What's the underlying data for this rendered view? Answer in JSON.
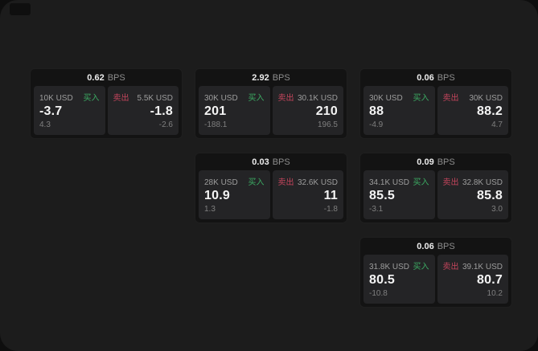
{
  "page": {
    "background_color": "#0e0e0e",
    "surface_color": "#1c1c1c",
    "card_color": "#131313",
    "tile_color": "#242426",
    "buy_color": "#3cab63",
    "sell_color": "#c4455c"
  },
  "labels": {
    "bps_unit": "BPS",
    "buy": "买入",
    "sell": "卖出"
  },
  "cards": [
    {
      "bps": "0.62",
      "buy": {
        "amount": "10K USD",
        "price": "-3.7",
        "delta": "4.3"
      },
      "sell": {
        "amount": "5.5K USD",
        "price": "-1.8",
        "delta": "-2.6"
      }
    },
    {
      "bps": "2.92",
      "buy": {
        "amount": "30K USD",
        "price": "201",
        "delta": "-188.1"
      },
      "sell": {
        "amount": "30.1K USD",
        "price": "210",
        "delta": "196.5"
      }
    },
    {
      "bps": "0.06",
      "buy": {
        "amount": "30K USD",
        "price": "88",
        "delta": "-4.9"
      },
      "sell": {
        "amount": "30K USD",
        "price": "88.2",
        "delta": "4.7"
      }
    },
    {
      "bps": "0.03",
      "buy": {
        "amount": "28K USD",
        "price": "10.9",
        "delta": "1.3"
      },
      "sell": {
        "amount": "32.6K USD",
        "price": "11",
        "delta": "-1.8"
      }
    },
    {
      "bps": "0.09",
      "buy": {
        "amount": "34.1K USD",
        "price": "85.5",
        "delta": "-3.1"
      },
      "sell": {
        "amount": "32.8K USD",
        "price": "85.8",
        "delta": "3.0"
      }
    },
    {
      "bps": "0.06",
      "buy": {
        "amount": "31.8K USD",
        "price": "80.5",
        "delta": "-10.8"
      },
      "sell": {
        "amount": "39.1K USD",
        "price": "80.7",
        "delta": "10.2"
      }
    }
  ]
}
